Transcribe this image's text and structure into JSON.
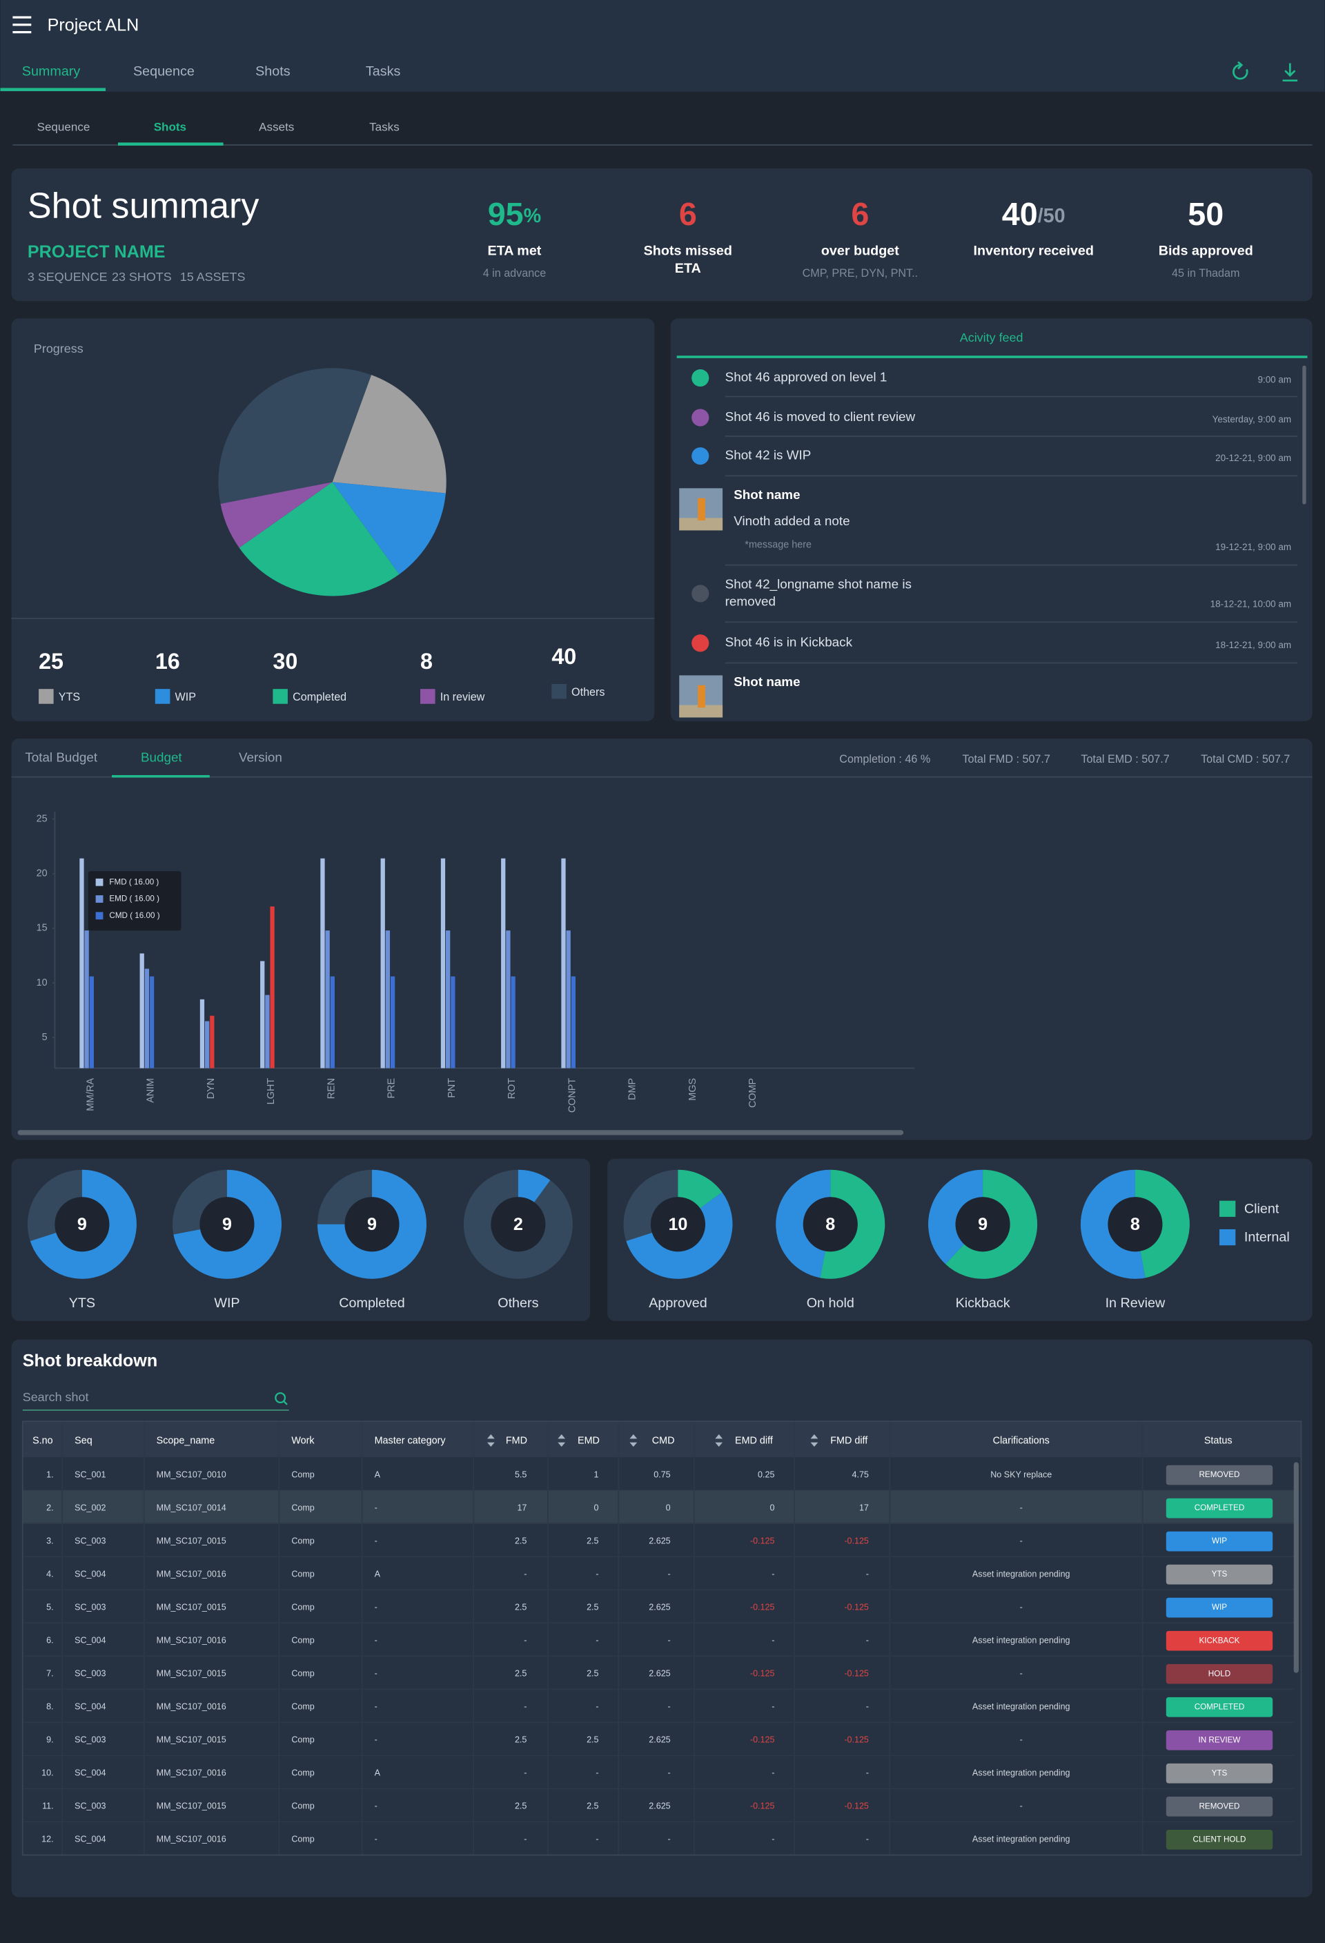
{
  "header": {
    "title": "Project ALN",
    "tabs": [
      "Summary",
      "Sequence",
      "Shots",
      "Tasks"
    ]
  },
  "subtabs": [
    "Sequence",
    "Shots",
    "Assets",
    "Tasks"
  ],
  "summary": {
    "title": "Shot summary",
    "project": "PROJECT NAME",
    "counts": [
      "3 SEQUENCE",
      "23 SHOTS",
      "15 ASSETS"
    ],
    "kpis": [
      {
        "value": "95",
        "unit": "%",
        "label": [
          "ETA met"
        ],
        "note": "4 in advance",
        "color": "#1fb98b"
      },
      {
        "value": "6",
        "label": [
          "Shots missed",
          "ETA"
        ],
        "color": "#e04545"
      },
      {
        "value": "6",
        "label": [
          "over budget"
        ],
        "note": "CMP, PRE, DYN, PNT..",
        "color": "#e04545"
      },
      {
        "value": "40",
        "unit": "/50",
        "unit_color": "#8f9aa7",
        "label": [
          "Inventory received"
        ],
        "color": "#ffffff"
      },
      {
        "value": "50",
        "label": [
          "Bids approved"
        ],
        "note": "45 in Thadam",
        "color": "#ffffff"
      }
    ]
  },
  "activity": {
    "title": "Acivity feed",
    "items": [
      {
        "color": "#1fb98b",
        "text": "Shot 46 approved on level 1",
        "time": "9:00 am"
      },
      {
        "color": "#8e54a6",
        "text": "Shot 46 is moved to client review",
        "time": "Yesterday, 9:00 am"
      },
      {
        "color": "#2d8ee0",
        "text": "Shot 42 is WIP",
        "time": "20-12-21, 9:00 am"
      },
      {
        "title": "Shot name",
        "text": "Vinoth added a note",
        "message": "*message here",
        "time": "19-12-21, 9:00 am"
      },
      {
        "color": "#4a5260",
        "text": [
          "Shot 42_longname shot name is",
          "removed"
        ],
        "time": "18-12-21, 10:00 am"
      },
      {
        "color": "#e04040",
        "text": "Shot 46 is in Kickback",
        "time": "18-12-21, 9:00 am"
      },
      {
        "title": "Shot name"
      }
    ]
  },
  "budget": {
    "tabs": [
      "Total Budget",
      "Budget",
      "Version"
    ],
    "stats": [
      "Completion : 46 %",
      "Total FMD : 507.7",
      "Total EMD : 507.7",
      "Total CMD : 507.7"
    ]
  },
  "chart_data": [
    {
      "type": "pie",
      "title": "Progress",
      "categories": [
        "YTS",
        "WIP",
        "Completed",
        "In review",
        "Others"
      ],
      "values": [
        25,
        16,
        30,
        8,
        40
      ],
      "colors": [
        "#a0a0a0",
        "#2d8ee0",
        "#1fb98b",
        "#8e54a6",
        "#34495e"
      ]
    },
    {
      "type": "bar",
      "categories": [
        "MM/RA",
        "ANIM",
        "DYN",
        "LGHT",
        "REN",
        "PRE",
        "PNT",
        "ROT",
        "CONPT",
        "DMP",
        "MGS",
        "COMP"
      ],
      "ylim": [
        2.2,
        25
      ],
      "yticks": [
        5,
        10,
        15,
        20,
        25
      ],
      "series": [
        {
          "color": "#a8bfe6",
          "values": [
            21.4,
            12.7,
            8.5,
            12,
            21.4,
            21.4,
            21.4,
            21.4,
            21.4,
            null,
            null,
            null
          ]
        },
        {
          "color": "#6b8fd6",
          "values": [
            14.8,
            11.3,
            6.5,
            8.9,
            14.8,
            14.8,
            14.8,
            14.8,
            14.8,
            null,
            null,
            null
          ]
        },
        {
          "color": "#3c6fd1",
          "over_color": "#e03a3a",
          "values": [
            10.6,
            10.6,
            7,
            17,
            10.6,
            10.6,
            10.6,
            10.6,
            10.6,
            null,
            null,
            null
          ]
        }
      ],
      "tooltip": [
        "FMD ( 16.00 )",
        "EMD ( 16.00 )",
        "CMD ( 16.00 )"
      ]
    },
    {
      "type": "donut",
      "categories": [
        "YTS",
        "WIP",
        "Completed",
        "Others"
      ],
      "center_values": [
        9,
        9,
        9,
        2
      ],
      "track_color": "#34495e",
      "series": [
        {
          "color": "#2d8ee0",
          "values": [
            70,
            72,
            75,
            10
          ]
        }
      ]
    },
    {
      "type": "donut",
      "categories": [
        "Approved",
        "On hold",
        "Kickback",
        "In Review"
      ],
      "center_values": [
        10,
        8,
        9,
        8
      ],
      "track_color": "#34495e",
      "legend": "right",
      "series": [
        {
          "name": "Client",
          "color": "#1fb98b",
          "values": [
            15,
            53,
            62,
            47
          ]
        },
        {
          "name": "Internal",
          "color": "#2d8ee0",
          "values": [
            55,
            47,
            38,
            53
          ]
        }
      ]
    }
  ],
  "breakdown": {
    "title": "Shot breakdown",
    "search": "Search shot",
    "columns": [
      "S.no",
      "Seq",
      "Scope_name",
      "Work",
      "Master category",
      "FMD",
      "EMD",
      "CMD",
      "EMD diff",
      "FMD diff",
      "Clarifications",
      "Status"
    ],
    "selected_row": 1,
    "status_colors": {
      "REMOVED": "#5a6270",
      "COMPLETED": "#1fb98b",
      "WIP": "#2d8ee0",
      "YTS": "#8e9296",
      "KICKBACK": "#e04040",
      "HOLD": "#8b3a44",
      "IN REVIEW": "#8a52a6",
      "CLIENT HOLD": "#3d5a3a"
    },
    "rows": [
      [
        "1.",
        "SC_001",
        "MM_SC107_0010",
        "Comp",
        "A",
        "5.5",
        "1",
        "0.75",
        "0.25",
        "4.75",
        "No SKY replace",
        "REMOVED"
      ],
      [
        "2.",
        "SC_002",
        "MM_SC107_0014",
        "Comp",
        "-",
        "17",
        "0",
        "0",
        "0",
        "17",
        "-",
        "COMPLETED"
      ],
      [
        "3.",
        "SC_003",
        "MM_SC107_0015",
        "Comp",
        "-",
        "2.5",
        "2.5",
        "2.625",
        "-0.125",
        "-0.125",
        "-",
        "WIP"
      ],
      [
        "4.",
        "SC_004",
        "MM_SC107_0016",
        "Comp",
        "A",
        "-",
        "-",
        "-",
        "-",
        "-",
        "Asset integration pending",
        "YTS"
      ],
      [
        "5.",
        "SC_003",
        "MM_SC107_0015",
        "Comp",
        "-",
        "2.5",
        "2.5",
        "2.625",
        "-0.125",
        "-0.125",
        "-",
        "WIP"
      ],
      [
        "6.",
        "SC_004",
        "MM_SC107_0016",
        "Comp",
        "-",
        "-",
        "-",
        "-",
        "-",
        "-",
        "Asset integration pending",
        "KICKBACK"
      ],
      [
        "7.",
        "SC_003",
        "MM_SC107_0015",
        "Comp",
        "-",
        "2.5",
        "2.5",
        "2.625",
        "-0.125",
        "-0.125",
        "-",
        "HOLD"
      ],
      [
        "8.",
        "SC_004",
        "MM_SC107_0016",
        "Comp",
        "-",
        "-",
        "-",
        "-",
        "-",
        "-",
        "Asset integration pending",
        "COMPLETED"
      ],
      [
        "9.",
        "SC_003",
        "MM_SC107_0015",
        "Comp",
        "-",
        "2.5",
        "2.5",
        "2.625",
        "-0.125",
        "-0.125",
        "-",
        "IN REVIEW"
      ],
      [
        "10.",
        "SC_004",
        "MM_SC107_0016",
        "Comp",
        "A",
        "-",
        "-",
        "-",
        "-",
        "-",
        "Asset integration pending",
        "YTS"
      ],
      [
        "11.",
        "SC_003",
        "MM_SC107_0015",
        "Comp",
        "-",
        "2.5",
        "2.5",
        "2.625",
        "-0.125",
        "-0.125",
        "-",
        "REMOVED"
      ],
      [
        "12.",
        "SC_004",
        "MM_SC107_0016",
        "Comp",
        "-",
        "-",
        "-",
        "-",
        "-",
        "-",
        "Asset integration pending",
        "CLIENT HOLD"
      ]
    ]
  }
}
